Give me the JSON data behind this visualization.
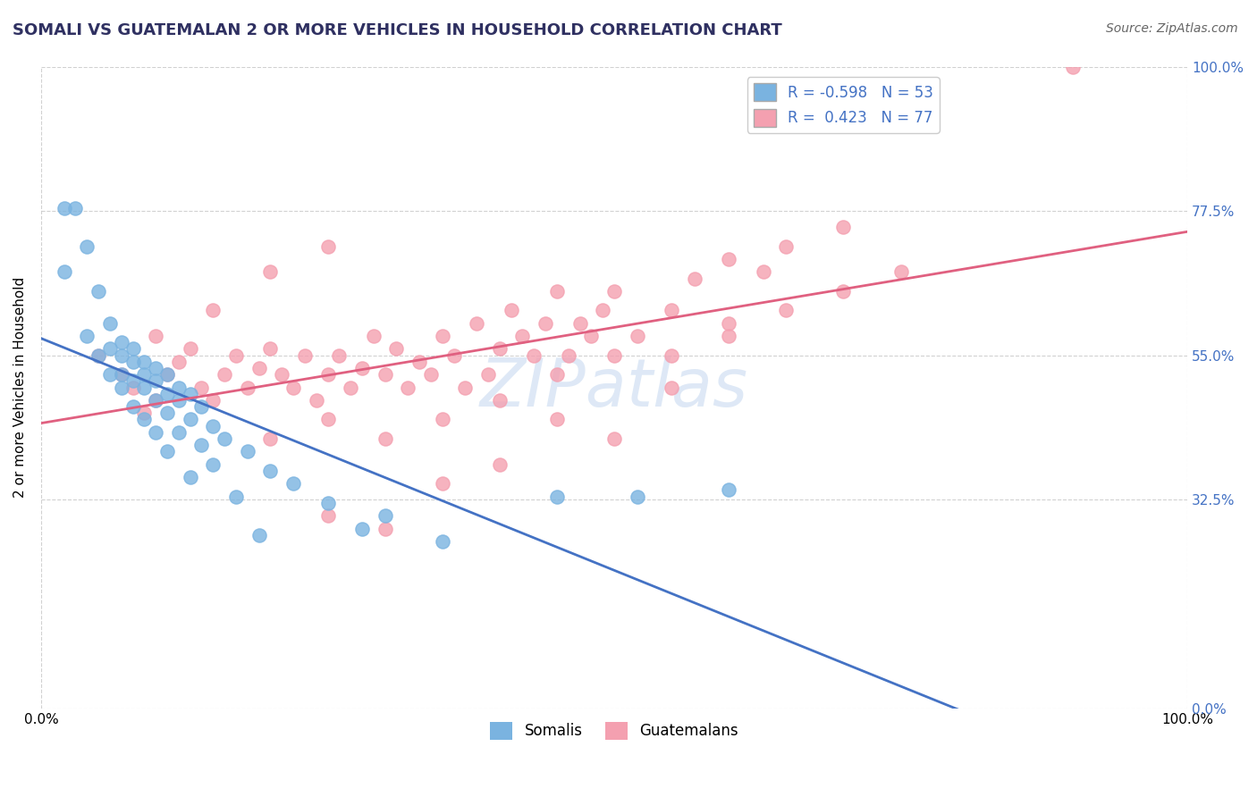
{
  "title": "SOMALI VS GUATEMALAN 2 OR MORE VEHICLES IN HOUSEHOLD CORRELATION CHART",
  "source_text": "Source: ZipAtlas.com",
  "ylabel": "2 or more Vehicles in Household",
  "xlim": [
    0.0,
    1.0
  ],
  "ylim": [
    0.0,
    1.0
  ],
  "xtick_positions": [
    0.0,
    1.0
  ],
  "xtick_labels": [
    "0.0%",
    "100.0%"
  ],
  "ytick_values": [
    0.0,
    0.325,
    0.55,
    0.775,
    1.0
  ],
  "ytick_labels": [
    "0.0%",
    "32.5%",
    "55.0%",
    "77.5%",
    "100.0%"
  ],
  "somali_R": -0.598,
  "somali_N": 53,
  "guatemalan_R": 0.423,
  "guatemalan_N": 77,
  "somali_color": "#7ab3e0",
  "guatemalan_color": "#f4a0b0",
  "somali_line_color": "#4472c4",
  "guatemalan_line_color": "#e06080",
  "right_tick_color": "#4472c4",
  "background_color": "#ffffff",
  "grid_color": "#cccccc",
  "title_color": "#2f3061",
  "legend_text_color": "#4472c4",
  "watermark_color": "#c8daf0",
  "somali_points": [
    [
      0.02,
      0.78
    ],
    [
      0.03,
      0.78
    ],
    [
      0.04,
      0.72
    ],
    [
      0.02,
      0.68
    ],
    [
      0.05,
      0.65
    ],
    [
      0.06,
      0.6
    ],
    [
      0.04,
      0.58
    ],
    [
      0.07,
      0.57
    ],
    [
      0.06,
      0.56
    ],
    [
      0.08,
      0.56
    ],
    [
      0.05,
      0.55
    ],
    [
      0.07,
      0.55
    ],
    [
      0.08,
      0.54
    ],
    [
      0.09,
      0.54
    ],
    [
      0.1,
      0.53
    ],
    [
      0.06,
      0.52
    ],
    [
      0.07,
      0.52
    ],
    [
      0.09,
      0.52
    ],
    [
      0.11,
      0.52
    ],
    [
      0.08,
      0.51
    ],
    [
      0.1,
      0.51
    ],
    [
      0.12,
      0.5
    ],
    [
      0.07,
      0.5
    ],
    [
      0.09,
      0.5
    ],
    [
      0.11,
      0.49
    ],
    [
      0.13,
      0.49
    ],
    [
      0.1,
      0.48
    ],
    [
      0.12,
      0.48
    ],
    [
      0.08,
      0.47
    ],
    [
      0.14,
      0.47
    ],
    [
      0.11,
      0.46
    ],
    [
      0.09,
      0.45
    ],
    [
      0.13,
      0.45
    ],
    [
      0.15,
      0.44
    ],
    [
      0.1,
      0.43
    ],
    [
      0.12,
      0.43
    ],
    [
      0.16,
      0.42
    ],
    [
      0.14,
      0.41
    ],
    [
      0.11,
      0.4
    ],
    [
      0.18,
      0.4
    ],
    [
      0.15,
      0.38
    ],
    [
      0.2,
      0.37
    ],
    [
      0.13,
      0.36
    ],
    [
      0.22,
      0.35
    ],
    [
      0.17,
      0.33
    ],
    [
      0.25,
      0.32
    ],
    [
      0.3,
      0.3
    ],
    [
      0.28,
      0.28
    ],
    [
      0.19,
      0.27
    ],
    [
      0.35,
      0.26
    ],
    [
      0.45,
      0.33
    ],
    [
      0.52,
      0.33
    ],
    [
      0.6,
      0.34
    ]
  ],
  "guatemalan_points": [
    [
      0.05,
      0.55
    ],
    [
      0.07,
      0.52
    ],
    [
      0.08,
      0.5
    ],
    [
      0.1,
      0.48
    ],
    [
      0.09,
      0.46
    ],
    [
      0.11,
      0.52
    ],
    [
      0.12,
      0.54
    ],
    [
      0.13,
      0.56
    ],
    [
      0.14,
      0.5
    ],
    [
      0.15,
      0.48
    ],
    [
      0.16,
      0.52
    ],
    [
      0.17,
      0.55
    ],
    [
      0.18,
      0.5
    ],
    [
      0.19,
      0.53
    ],
    [
      0.2,
      0.56
    ],
    [
      0.21,
      0.52
    ],
    [
      0.22,
      0.5
    ],
    [
      0.23,
      0.55
    ],
    [
      0.24,
      0.48
    ],
    [
      0.25,
      0.52
    ],
    [
      0.26,
      0.55
    ],
    [
      0.27,
      0.5
    ],
    [
      0.28,
      0.53
    ],
    [
      0.29,
      0.58
    ],
    [
      0.3,
      0.52
    ],
    [
      0.31,
      0.56
    ],
    [
      0.32,
      0.5
    ],
    [
      0.33,
      0.54
    ],
    [
      0.34,
      0.52
    ],
    [
      0.35,
      0.58
    ],
    [
      0.36,
      0.55
    ],
    [
      0.37,
      0.5
    ],
    [
      0.38,
      0.6
    ],
    [
      0.39,
      0.52
    ],
    [
      0.4,
      0.56
    ],
    [
      0.41,
      0.62
    ],
    [
      0.42,
      0.58
    ],
    [
      0.43,
      0.55
    ],
    [
      0.44,
      0.6
    ],
    [
      0.45,
      0.65
    ],
    [
      0.46,
      0.55
    ],
    [
      0.47,
      0.6
    ],
    [
      0.48,
      0.58
    ],
    [
      0.49,
      0.62
    ],
    [
      0.5,
      0.65
    ],
    [
      0.52,
      0.58
    ],
    [
      0.55,
      0.62
    ],
    [
      0.57,
      0.67
    ],
    [
      0.6,
      0.7
    ],
    [
      0.63,
      0.68
    ],
    [
      0.65,
      0.72
    ],
    [
      0.7,
      0.75
    ],
    [
      0.25,
      0.3
    ],
    [
      0.3,
      0.28
    ],
    [
      0.35,
      0.35
    ],
    [
      0.4,
      0.38
    ],
    [
      0.15,
      0.62
    ],
    [
      0.2,
      0.68
    ],
    [
      0.25,
      0.72
    ],
    [
      0.1,
      0.58
    ],
    [
      0.55,
      0.55
    ],
    [
      0.6,
      0.6
    ],
    [
      0.45,
      0.45
    ],
    [
      0.5,
      0.42
    ],
    [
      0.2,
      0.42
    ],
    [
      0.25,
      0.45
    ],
    [
      0.3,
      0.42
    ],
    [
      0.35,
      0.45
    ],
    [
      0.4,
      0.48
    ],
    [
      0.45,
      0.52
    ],
    [
      0.5,
      0.55
    ],
    [
      0.55,
      0.5
    ],
    [
      0.6,
      0.58
    ],
    [
      0.65,
      0.62
    ],
    [
      0.7,
      0.65
    ],
    [
      0.75,
      0.68
    ],
    [
      0.9,
      1.0
    ]
  ]
}
